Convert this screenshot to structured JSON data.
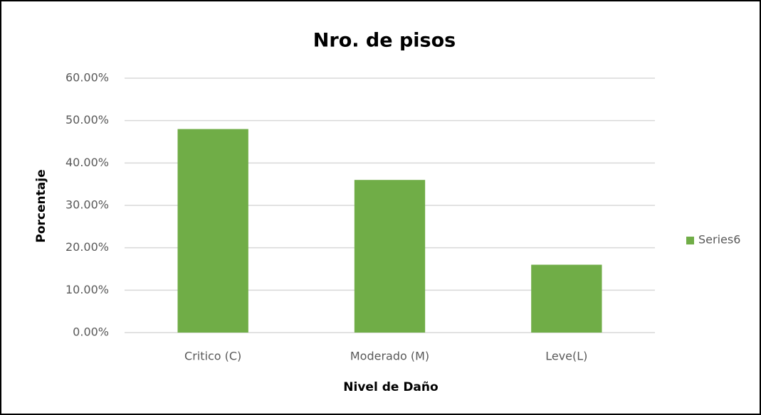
{
  "chart_data": {
    "type": "bar",
    "title": "Nro. de pisos",
    "x_label": "Nivel de Daño",
    "y_label": "Porcentaje",
    "categories": [
      "Critico (C)",
      "Moderado (M)",
      "Leve(L)"
    ],
    "series": [
      {
        "name": "Series6",
        "color": "#70ad47",
        "values": [
          48,
          36,
          16
        ]
      }
    ],
    "ylim": [
      0,
      60
    ],
    "yticks": [
      {
        "value": 0,
        "label": "0.00%"
      },
      {
        "value": 10,
        "label": "10.00%"
      },
      {
        "value": 20,
        "label": "20.00%"
      },
      {
        "value": 30,
        "label": "30.00%"
      },
      {
        "value": 40,
        "label": "40.00%"
      },
      {
        "value": 50,
        "label": "50.00%"
      },
      {
        "value": 60,
        "label": "60.00%"
      }
    ],
    "grid": true,
    "legend": "right"
  }
}
